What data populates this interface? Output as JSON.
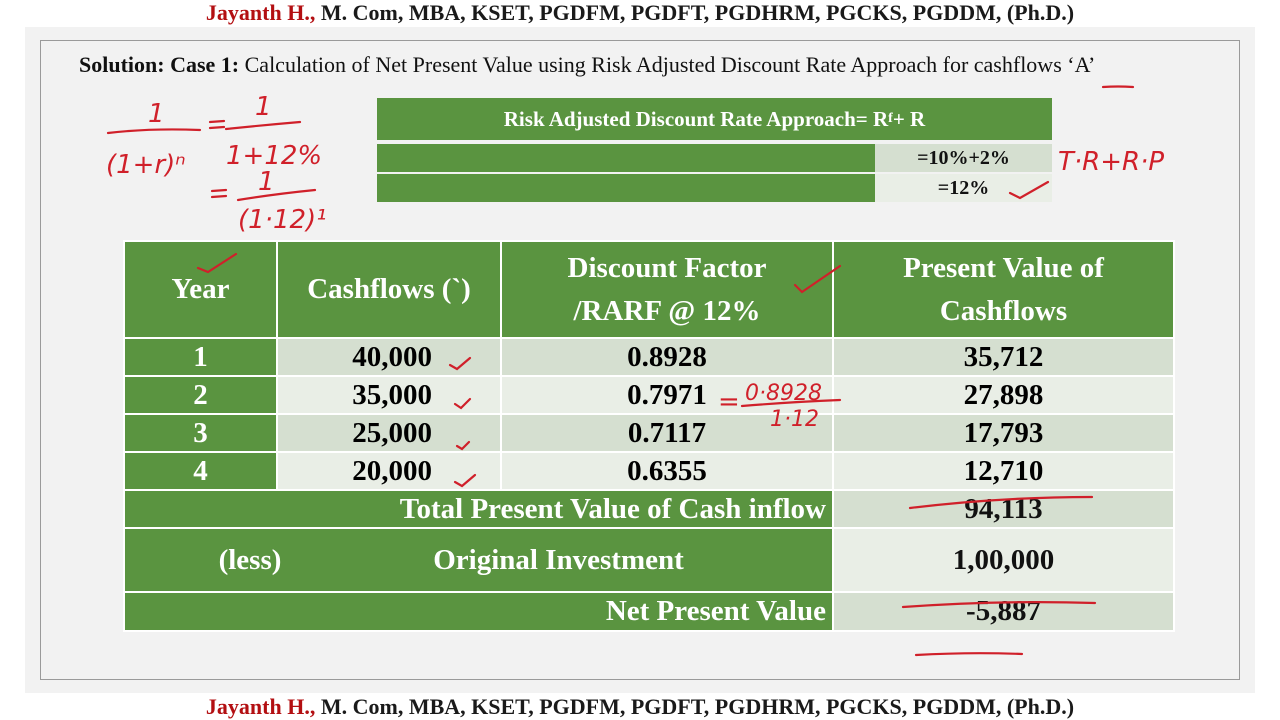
{
  "header": {
    "author_name": "Jayanth H.,",
    "qualifications": " M. Com, MBA, KSET, PGDFM, PGDFT, PGDHRM, PGCKS, PGDDM, (Ph.D.)"
  },
  "footer": {
    "author_name": "Jayanth H.,",
    "qualifications": " M. Com, MBA, KSET, PGDFM, PGDFT, PGDHRM, PGCKS, PGDDM, (Ph.D.)"
  },
  "title": {
    "bold_part": "Solution: Case 1:",
    "text_part": " Calculation of Net Present Value using Risk Adjusted Discount Rate Approach for cashflows ‘A’"
  },
  "formula": {
    "heading_main": "Risk Adjusted Discount Rate Approach= R",
    "heading_sub": "f",
    "heading_tail": " + R",
    "row1_value": "=10%+2%",
    "row2_value": "=12%"
  },
  "table": {
    "headers": {
      "year": "Year",
      "cashflows": "Cashflows (`)",
      "discount_line1": "Discount Factor",
      "discount_line2": "/RARF @ 12%",
      "pv_line1": "Present Value of",
      "pv_line2": "Cashflows"
    },
    "rows": [
      {
        "year": "1",
        "cashflow": "40,000",
        "factor": "0.8928",
        "pv": "35,712"
      },
      {
        "year": "2",
        "cashflow": "35,000",
        "factor": "0.7971",
        "pv": "27,898"
      },
      {
        "year": "3",
        "cashflow": "25,000",
        "factor": "0.7117",
        "pv": "17,793"
      },
      {
        "year": "4",
        "cashflow": "20,000",
        "factor": "0.6355",
        "pv": "12,710"
      }
    ],
    "total_label": "Total Present Value of Cash inflow",
    "total_value": "94,113",
    "less_label": "(less)",
    "investment_label": "Original Investment",
    "investment_value": "1,00,000",
    "npv_label": "Net Present Value",
    "npv_value": "-5,887"
  },
  "handwritten": {
    "fraction1_num": "1",
    "fraction1_den": "(1+r)ⁿ",
    "equals": "=",
    "fraction2_num": "1",
    "fraction2_den": "1+12%",
    "fraction3_num": "1",
    "fraction3_den": "(1·12)¹",
    "right_note": "T·R+R·P",
    "df_note_num": "0·8928",
    "df_note_den": "1·12"
  },
  "colors": {
    "green": "#5a9440",
    "light_cell": "#d5dfd0",
    "lighter_cell": "#e9eee6",
    "author_red": "#b30f12",
    "ink_red": "#d0202a"
  }
}
